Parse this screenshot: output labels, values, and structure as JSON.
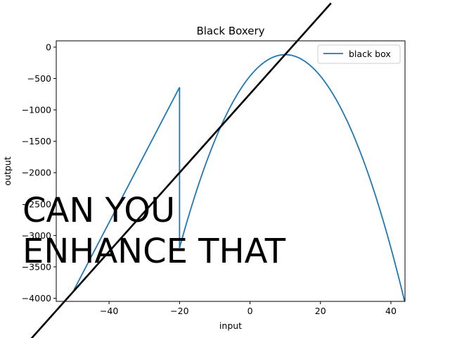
{
  "chart_data": {
    "type": "line",
    "title": "Black Boxery",
    "xlabel": "input",
    "ylabel": "output",
    "xlim": [
      -55,
      44
    ],
    "ylim": [
      -4050,
      100
    ],
    "xticks": [
      -40,
      -20,
      0,
      20,
      40
    ],
    "yticks": [
      0,
      -500,
      -1000,
      -1500,
      -2000,
      -2500,
      -3000,
      -3500,
      -4000
    ],
    "xtick_labels": [
      "−40",
      "−20",
      "0",
      "20",
      "40"
    ],
    "ytick_labels": [
      "0",
      "−500",
      "−1000",
      "−1500",
      "−2000",
      "−2500",
      "−3000",
      "−3500",
      "−4000"
    ],
    "grid": false,
    "legend_position": "top-right",
    "series": [
      {
        "name": "black box",
        "color": "#1f77b4",
        "piecewise": {
          "linear": {
            "x": [
              -50,
              -20
            ],
            "y": [
              -3870,
              -640
            ]
          },
          "quadratic": {
            "x_start": -20,
            "x_end": 44,
            "vertex_x": 10,
            "vertex_y": -120,
            "a": -3.42
          }
        }
      },
      {
        "name": "",
        "color": "#000000",
        "x": [
          -63,
          23
        ],
        "y": [
          -4700,
          700
        ]
      }
    ],
    "annotations": [
      {
        "text": "CAN YOU",
        "style": "pixelated-mosaic"
      },
      {
        "text": "ENHANCE THAT",
        "style": "pixelated-mosaic"
      }
    ]
  }
}
